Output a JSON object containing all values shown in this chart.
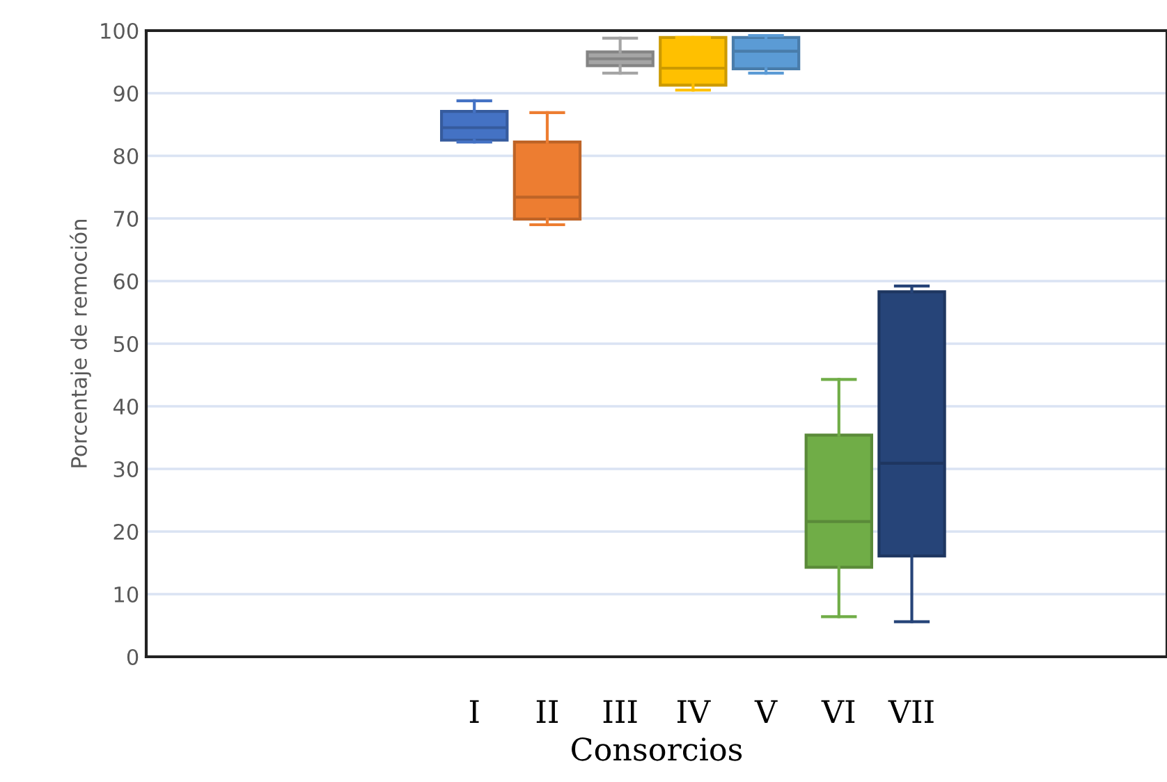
{
  "chart_data": {
    "type": "box",
    "xlabel": "Consorcios",
    "ylabel": "Porcentaje de remoción",
    "categories": [
      null,
      null,
      null,
      null,
      "I",
      "II",
      "III",
      "IV",
      "V",
      "VI",
      "VII",
      null,
      null,
      null
    ],
    "colors": [
      null,
      null,
      null,
      null,
      "#4472c4",
      "#ed7d31",
      "#a5a5a5",
      "#ffc000",
      "#5b9bd5",
      "#70ad47",
      "#264478",
      null,
      null,
      null
    ],
    "boxes": [
      null,
      null,
      null,
      null,
      {
        "low": 82.2,
        "q1": 82.5,
        "median": 84.5,
        "q3": 87.1,
        "high": 88.8
      },
      {
        "low": 69.0,
        "q1": 69.9,
        "median": 73.4,
        "q3": 82.2,
        "high": 86.9
      },
      {
        "low": 93.2,
        "q1": 94.4,
        "median": 95.5,
        "q3": 96.6,
        "high": 98.8
      },
      {
        "low": 90.5,
        "q1": 91.3,
        "median": 94.0,
        "q3": 98.9,
        "high": 98.9
      },
      {
        "low": 93.2,
        "q1": 93.9,
        "median": 96.7,
        "q3": 98.9,
        "high": 99.2
      },
      {
        "low": 6.4,
        "q1": 14.3,
        "median": 21.6,
        "q3": 35.4,
        "high": 44.3
      },
      {
        "low": 5.6,
        "q1": 16.1,
        "median": 30.9,
        "q3": 58.3,
        "high": 59.2
      },
      null,
      null,
      null
    ],
    "ylim": [
      0,
      100
    ],
    "yticks": [
      0,
      10,
      20,
      30,
      40,
      50,
      60,
      70,
      80,
      90,
      100
    ],
    "grid": "y"
  }
}
